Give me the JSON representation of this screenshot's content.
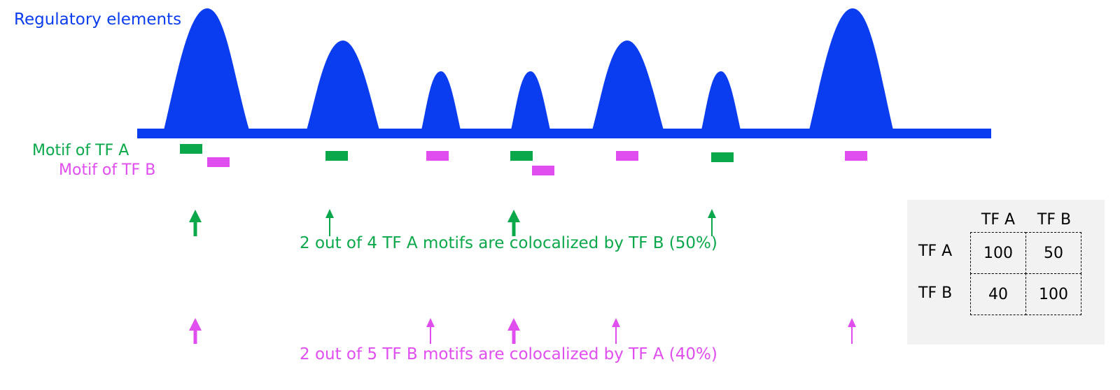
{
  "title": "Regulatory elements",
  "legend": {
    "motif_a": "Motif of TF A",
    "motif_b": "Motif of TF B"
  },
  "colors": {
    "elements": "#0a3cf0",
    "tf_a": "#0aa84a",
    "tf_b": "#e14ef0",
    "panel": "#f1f2f1"
  },
  "peaks": [
    {
      "tall": "high",
      "motifs": [
        "A",
        "B"
      ],
      "colocalized": true
    },
    {
      "tall": "medium",
      "motifs": [
        "A"
      ],
      "colocalized": false
    },
    {
      "tall": "low",
      "motifs": [
        "B"
      ],
      "colocalized": false
    },
    {
      "tall": "low",
      "motifs": [
        "A",
        "B"
      ],
      "colocalized": true
    },
    {
      "tall": "medium",
      "motifs": [
        "B"
      ],
      "colocalized": false
    },
    {
      "tall": "low",
      "motifs": [
        "A"
      ],
      "colocalized": false
    },
    {
      "tall": "high",
      "motifs": [
        "B"
      ],
      "colocalized": false
    }
  ],
  "summary": {
    "tf_a": "2 out of 4 TF A motifs are colocalized by TF B (50%)",
    "tf_b": "2 out of 5 TF B motifs are colocalized by TF A (40%)"
  },
  "matrix": {
    "columns": [
      "TF A",
      "TF B"
    ],
    "rows": [
      {
        "label": "TF A",
        "values": [
          "100",
          "50"
        ]
      },
      {
        "label": "TF B",
        "values": [
          "40",
          "100"
        ]
      }
    ]
  }
}
